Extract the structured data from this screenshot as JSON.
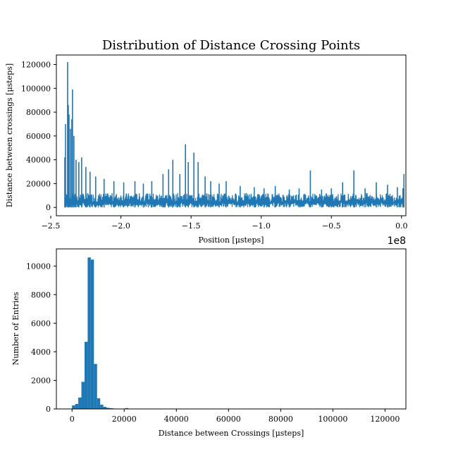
{
  "chart_data": [
    {
      "type": "line",
      "title": "Distribution of Distance Crossing Points",
      "xlabel": "Position [μsteps]",
      "ylabel": "Distance between crossings [μsteps]",
      "xlim": [
        -246000000.0,
        3100000.0
      ],
      "ylim": [
        -7000,
        128000
      ],
      "x_offset_label": "1e8",
      "xticks": [
        -250000000.0,
        -200000000.0,
        -150000000.0,
        -100000000.0,
        -50000000.0,
        0.0
      ],
      "xtick_labels": [
        "−2.5",
        "−2.0",
        "−1.5",
        "−1.0",
        "−0.5",
        "0.0"
      ],
      "yticks": [
        0,
        20000,
        40000,
        60000,
        80000,
        100000,
        120000
      ],
      "ytick_labels": [
        "0",
        "20000",
        "40000",
        "60000",
        "80000",
        "100000",
        "120000"
      ],
      "color": "#1f77b4",
      "x_range": [
        -240000000.0,
        1800000.0
      ],
      "baseline_band": [
        0,
        12000
      ],
      "spikes": [
        {
          "x": -240000000.0,
          "y": 42000
        },
        {
          "x": -239500000.0,
          "y": 70000
        },
        {
          "x": -238000000.0,
          "y": 122000
        },
        {
          "x": -237500000.0,
          "y": 86000
        },
        {
          "x": -237000000.0,
          "y": 78000
        },
        {
          "x": -236000000.0,
          "y": 66000
        },
        {
          "x": -235000000.0,
          "y": 74000
        },
        {
          "x": -234500000.0,
          "y": 99000
        },
        {
          "x": -233500000.0,
          "y": 60000
        },
        {
          "x": -232000000.0,
          "y": 40000
        },
        {
          "x": -230000000.0,
          "y": 38000
        },
        {
          "x": -228000000.0,
          "y": 42000
        },
        {
          "x": -225000000.0,
          "y": 34000
        },
        {
          "x": -222000000.0,
          "y": 30000
        },
        {
          "x": -218000000.0,
          "y": 26000
        },
        {
          "x": -212000000.0,
          "y": 24000
        },
        {
          "x": -205000000.0,
          "y": 22000
        },
        {
          "x": -198000000.0,
          "y": 21000
        },
        {
          "x": -190000000.0,
          "y": 22000
        },
        {
          "x": -184000000.0,
          "y": 20000
        },
        {
          "x": -178000000.0,
          "y": 22000
        },
        {
          "x": -170000000.0,
          "y": 28000
        },
        {
          "x": -166000000.0,
          "y": 32000
        },
        {
          "x": -163000000.0,
          "y": 40000
        },
        {
          "x": -158000000.0,
          "y": 28000
        },
        {
          "x": -154000000.0,
          "y": 53000
        },
        {
          "x": -152000000.0,
          "y": 38000
        },
        {
          "x": -148000000.0,
          "y": 46000
        },
        {
          "x": -145000000.0,
          "y": 38000
        },
        {
          "x": -140000000.0,
          "y": 26000
        },
        {
          "x": -136000000.0,
          "y": 22000
        },
        {
          "x": -130000000.0,
          "y": 20000
        },
        {
          "x": -125000000.0,
          "y": 22000
        },
        {
          "x": -115000000.0,
          "y": 18000
        },
        {
          "x": -105000000.0,
          "y": 17000
        },
        {
          "x": -98000000.0,
          "y": 16000
        },
        {
          "x": -90000000.0,
          "y": 18000
        },
        {
          "x": -80000000.0,
          "y": 15000
        },
        {
          "x": -73000000.0,
          "y": 16000
        },
        {
          "x": -65000000.0,
          "y": 31000
        },
        {
          "x": -57000000.0,
          "y": 15000
        },
        {
          "x": -50000000.0,
          "y": 16000
        },
        {
          "x": -42000000.0,
          "y": 21000
        },
        {
          "x": -34000000.0,
          "y": 31000
        },
        {
          "x": -26000000.0,
          "y": 16000
        },
        {
          "x": -18000000.0,
          "y": 21000
        },
        {
          "x": -10000000.0,
          "y": 19000
        },
        {
          "x": -3000000.0,
          "y": 17000
        },
        {
          "x": 1000000.0,
          "y": 16000
        },
        {
          "x": 1700000.0,
          "y": 28000
        }
      ]
    },
    {
      "type": "bar",
      "xlabel": "Distance between Crossings [μsteps]",
      "ylabel": "Number of Entries",
      "xlim": [
        -6000,
        128000
      ],
      "ylim": [
        0,
        11200
      ],
      "xticks": [
        0,
        20000,
        40000,
        60000,
        80000,
        100000,
        120000
      ],
      "xtick_labels": [
        "0",
        "20000",
        "40000",
        "60000",
        "80000",
        "100000",
        "120000"
      ],
      "yticks": [
        0,
        2000,
        4000,
        6000,
        8000,
        10000
      ],
      "ytick_labels": [
        "0",
        "2000",
        "4000",
        "6000",
        "8000",
        "10000"
      ],
      "color": "#1f77b4",
      "bin_width": 1200,
      "bins": [
        {
          "x0": 0,
          "count": 250
        },
        {
          "x0": 1200,
          "count": 350
        },
        {
          "x0": 2400,
          "count": 800
        },
        {
          "x0": 3600,
          "count": 1900
        },
        {
          "x0": 4800,
          "count": 4700
        },
        {
          "x0": 6000,
          "count": 10600
        },
        {
          "x0": 7200,
          "count": 10450
        },
        {
          "x0": 8400,
          "count": 3150
        },
        {
          "x0": 9600,
          "count": 750
        },
        {
          "x0": 10800,
          "count": 300
        },
        {
          "x0": 12000,
          "count": 150
        },
        {
          "x0": 13200,
          "count": 80
        },
        {
          "x0": 14400,
          "count": 50
        },
        {
          "x0": 15600,
          "count": 30
        },
        {
          "x0": 16800,
          "count": 20
        },
        {
          "x0": 18000,
          "count": 15
        },
        {
          "x0": 19200,
          "count": 25
        },
        {
          "x0": 20400,
          "count": 60
        },
        {
          "x0": 21600,
          "count": 15
        },
        {
          "x0": 26400,
          "count": 8
        },
        {
          "x0": 30000,
          "count": 5
        },
        {
          "x0": 36000,
          "count": 3
        }
      ]
    }
  ]
}
